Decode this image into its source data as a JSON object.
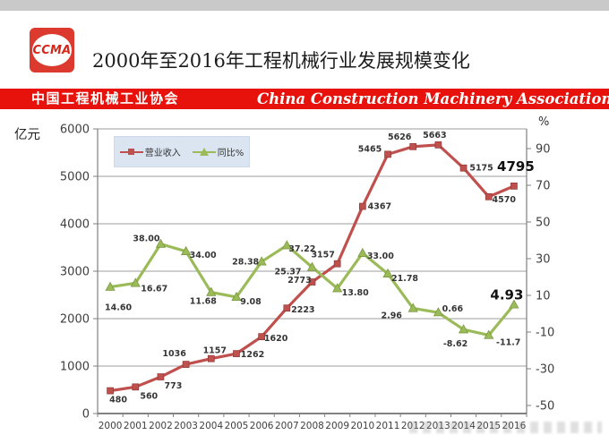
{
  "header": {
    "logo_text": "CCMA",
    "title": "2000年至2016年工程机械行业发展规模变化"
  },
  "banner": {
    "cn": "中国工程机械工业协会",
    "en": "China Construction Machinery Association",
    "bg_color": "#e8120c",
    "text_color": "#ffffff"
  },
  "chart_data": {
    "type": "line",
    "title": "2000年至2016年工程机械行业发展规模变化",
    "categories": [
      "2000",
      "2001",
      "2002",
      "2003",
      "2004",
      "2005",
      "2006",
      "2007",
      "2008",
      "2009",
      "2010",
      "2011",
      "2012",
      "2013",
      "2014",
      "2015",
      "2016"
    ],
    "series": [
      {
        "name": "营业收入",
        "axis": "left",
        "color": "#c0504d",
        "marker": "square",
        "values": [
          480,
          560,
          773,
          1036,
          1157,
          1262,
          1620,
          2223,
          2773,
          3157,
          4367,
          5465,
          5626,
          5663,
          5175,
          4570,
          4795
        ],
        "labels": [
          "480",
          "560",
          "773",
          "1036",
          "1157",
          "1262",
          "1620",
          "2223",
          "2773",
          "3157",
          "4367",
          "5465",
          "5626",
          "5663",
          "5175",
          "4570",
          "4795"
        ]
      },
      {
        "name": "同比%",
        "axis": "right",
        "color": "#9bbb59",
        "marker": "triangle",
        "values": [
          14.6,
          16.67,
          38.0,
          34.0,
          11.68,
          9.08,
          28.38,
          37.22,
          25.37,
          13.8,
          33.0,
          21.78,
          2.96,
          0.66,
          -8.62,
          -11.7,
          4.93
        ],
        "labels": [
          "14.60",
          "16.67",
          "38.00",
          "34.00",
          "11.68",
          "9.08",
          "28.38",
          "37.22",
          "25.37",
          "13.80",
          "33.00",
          "21.78",
          "2.96",
          "0.66",
          "-8.62",
          "-11.7",
          "4.93"
        ]
      }
    ],
    "left_axis": {
      "unit": "亿元",
      "min": 0,
      "max": 6000,
      "step": 1000,
      "ticks": [
        "6000",
        "5000",
        "4000",
        "3000",
        "2000",
        "1000",
        "0"
      ]
    },
    "right_axis": {
      "unit": "%",
      "min": -50,
      "max": 90,
      "step": 20,
      "ticks": [
        "90",
        "70",
        "50",
        "30",
        "10",
        "-10",
        "-30",
        "-50"
      ]
    },
    "legend": {
      "position": "top-left-inside",
      "items": [
        "营业收入",
        "同比%"
      ]
    },
    "grid": true,
    "xlabel": "",
    "ylabel": "亿元 / %"
  }
}
